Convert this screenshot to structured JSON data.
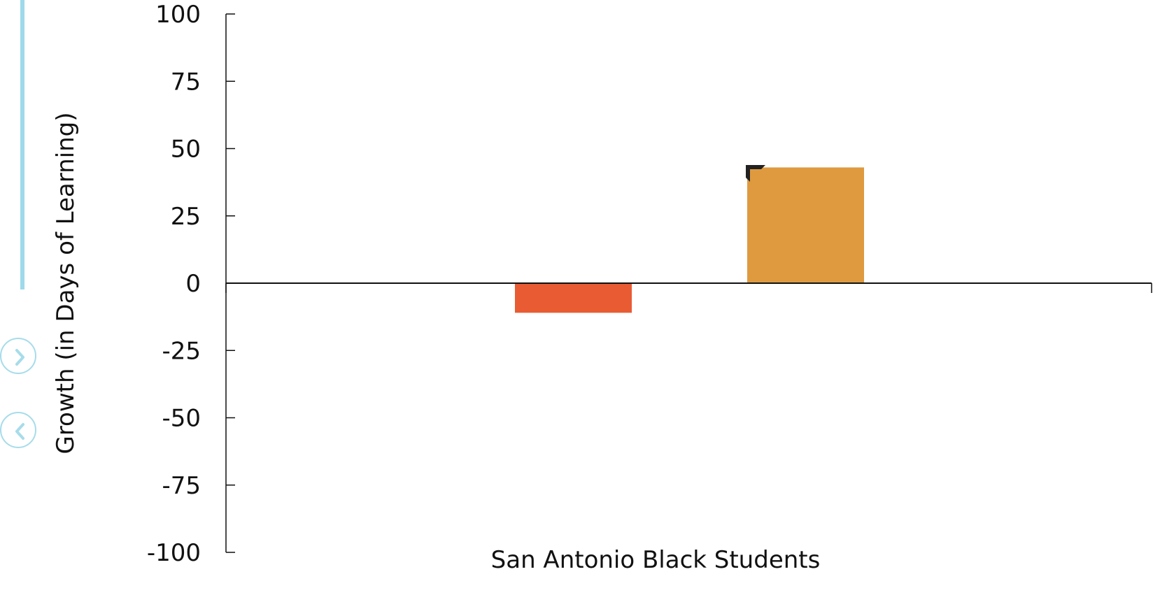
{
  "chart_data": {
    "type": "bar",
    "categories": [
      "San Antonio Black Students"
    ],
    "series": [
      {
        "values": [
          -11
        ],
        "color": "#e85b33"
      },
      {
        "values": [
          43
        ],
        "color": "#df9a3f"
      }
    ],
    "title": "",
    "xlabel": "San Antonio Black Students",
    "ylabel": "Growth (in Days of Learning)",
    "ylim": [
      -100,
      100
    ],
    "yticks": [
      "100",
      "75",
      "50",
      "25",
      "0",
      "-25",
      "-50",
      "-75",
      "-100"
    ],
    "grid": false,
    "legend": "none"
  },
  "nav": {
    "next_icon": "chevron-right-icon",
    "prev_icon": "chevron-left-icon",
    "accent_color": "#a7dcea"
  }
}
